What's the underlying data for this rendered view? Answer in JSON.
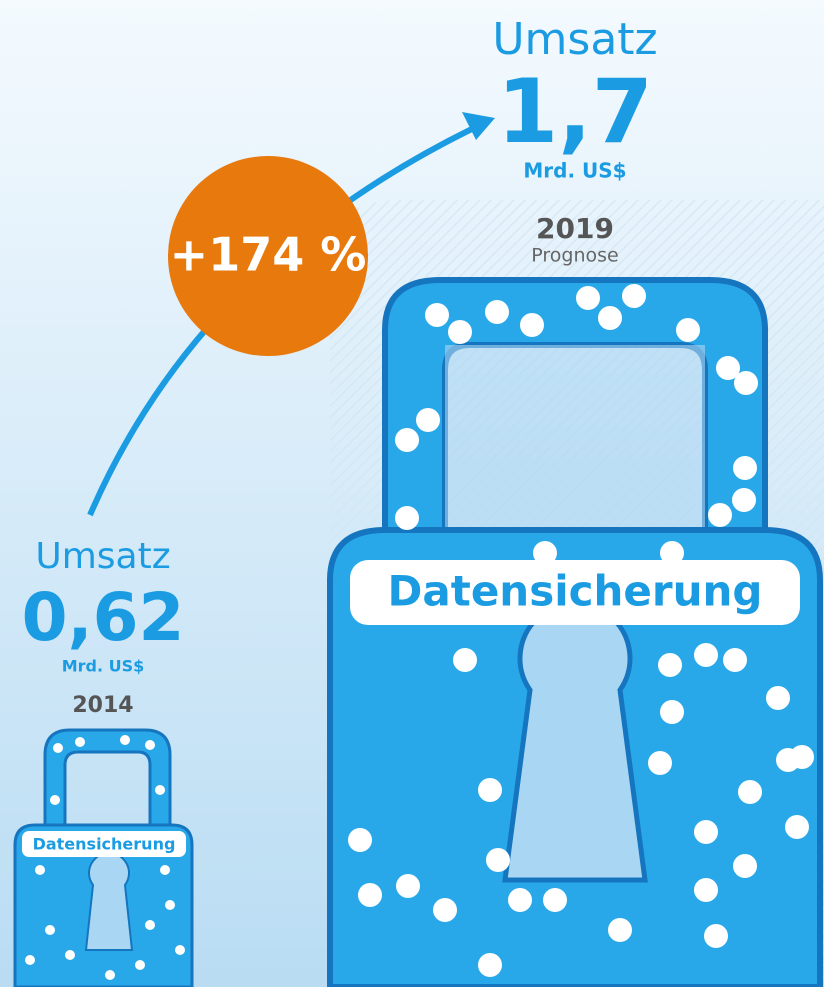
{
  "growth": "+174 %",
  "before": {
    "label": "Umsatz",
    "value": "0,62",
    "unit": "Mrd. US$",
    "year": "2014",
    "lock_label": "Datensicherung"
  },
  "after": {
    "label": "Umsatz",
    "value": "1,7",
    "unit": "Mrd. US$",
    "year": "2019",
    "note": "Prognose",
    "lock_label": "Datensicherung"
  }
}
